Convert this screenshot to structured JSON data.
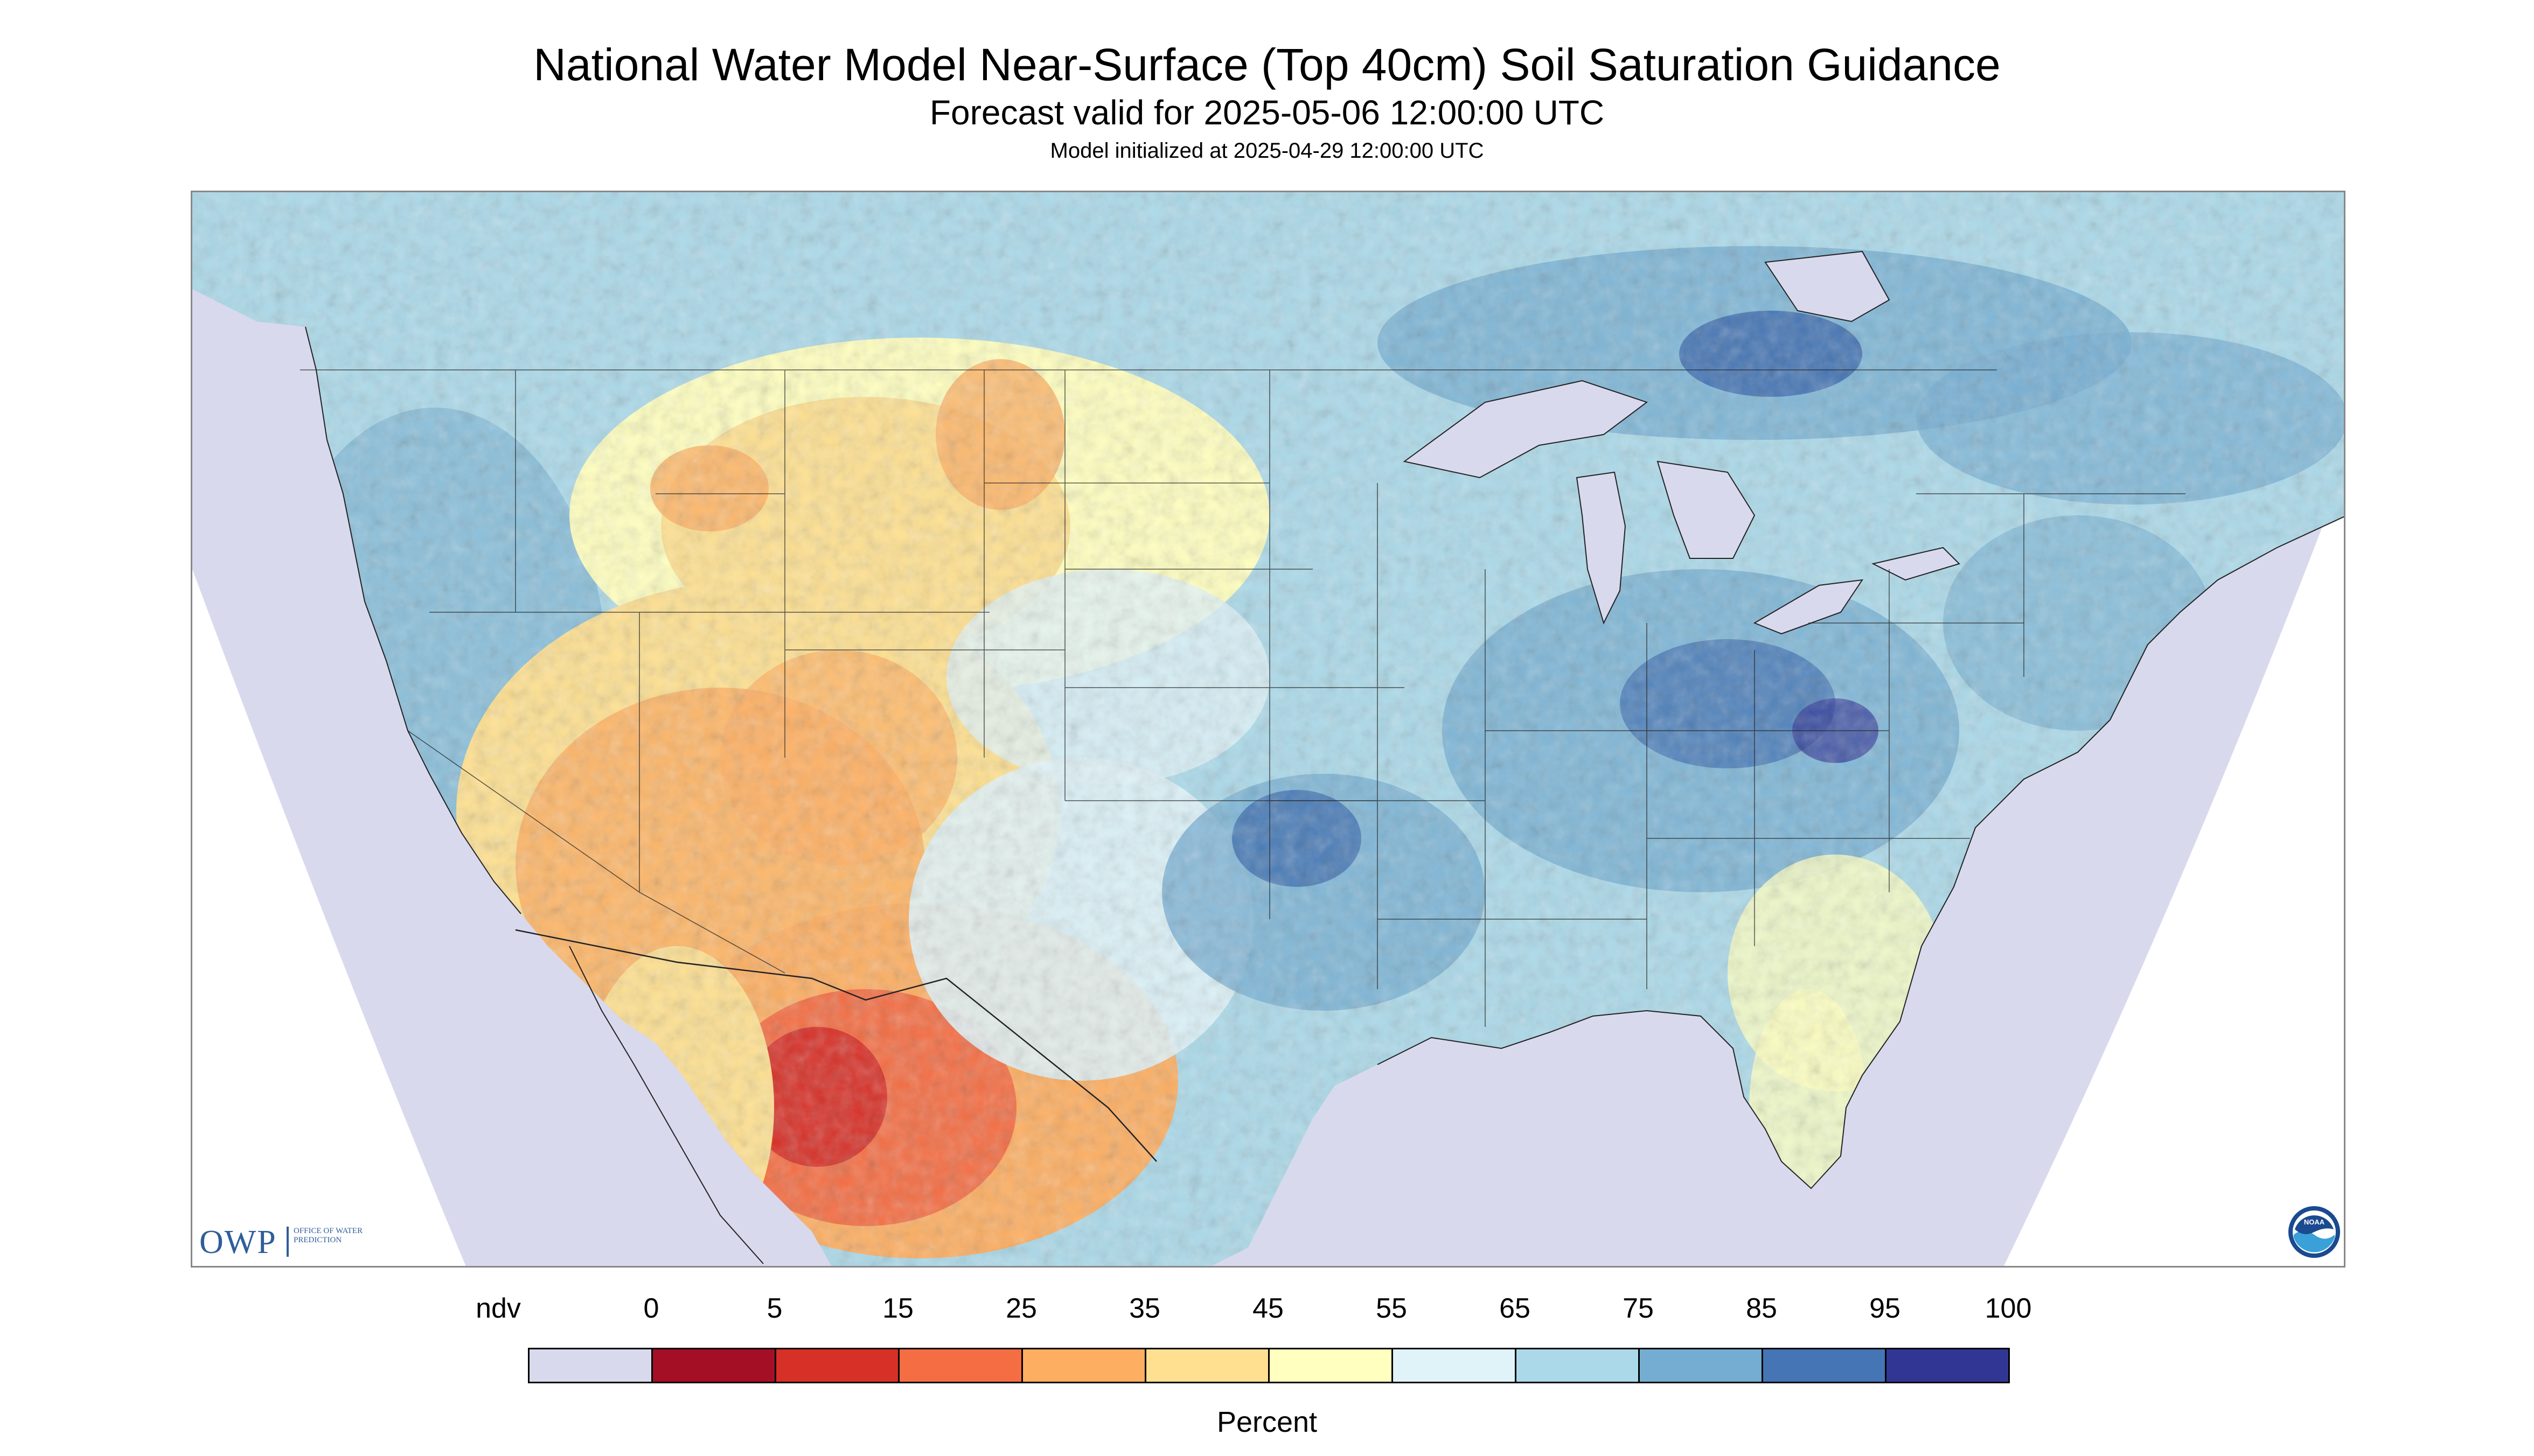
{
  "title": "National Water Model Near-Surface (Top 40cm) Soil Saturation Guidance",
  "subtitle": "Forecast valid for 2025-05-06 12:00:00 UTC",
  "init_text": "Model initialized at 2025-04-29 12:00:00 UTC",
  "logo_owp": {
    "mark": "OWP",
    "text": "OFFICE OF WATER PREDICTION"
  },
  "logo_noaa": {
    "mark": "NOAA"
  },
  "legend": {
    "label": "Percent",
    "ticks": [
      "ndv",
      "0",
      "5",
      "15",
      "25",
      "35",
      "45",
      "55",
      "65",
      "75",
      "85",
      "95",
      "100"
    ],
    "colors": [
      "#d9d9ee",
      "#a50f26",
      "#d73027",
      "#f46d43",
      "#fdae61",
      "#fee090",
      "#ffffbf",
      "#e0f3f8",
      "#abd9e9",
      "#74add1",
      "#4575b4",
      "#313695"
    ]
  },
  "colors": {
    "no_data": "#d9d9ee",
    "water": "#d9d9ee",
    "border": "#222222"
  }
}
